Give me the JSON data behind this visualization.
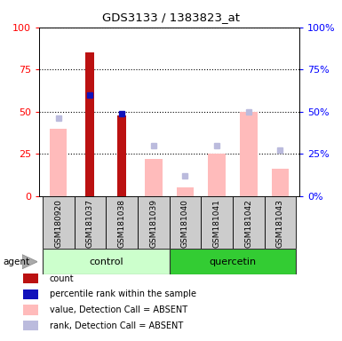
{
  "title": "GDS3133 / 1383823_at",
  "samples": [
    "GSM180920",
    "GSM181037",
    "GSM181038",
    "GSM181039",
    "GSM181040",
    "GSM181041",
    "GSM181042",
    "GSM181043"
  ],
  "count_values": [
    null,
    85,
    48,
    null,
    null,
    null,
    null,
    null
  ],
  "percentile_rank_values": [
    null,
    60,
    49,
    null,
    null,
    null,
    null,
    null
  ],
  "value_absent": [
    40,
    null,
    null,
    22,
    5,
    25,
    50,
    16
  ],
  "rank_absent": [
    46,
    null,
    null,
    30,
    12,
    30,
    50,
    27
  ],
  "ylim": [
    0,
    100
  ],
  "yticks": [
    0,
    25,
    50,
    75,
    100
  ],
  "count_color": "#bb1111",
  "percentile_color": "#1111bb",
  "value_absent_color": "#ffbbbb",
  "rank_absent_color": "#bbbbdd",
  "control_color_light": "#ccffcc",
  "control_color_dark": "#44dd44",
  "quercetin_color": "#33cc33",
  "sample_bg": "#cccccc",
  "bar_width": 0.55,
  "count_bar_width": 0.28
}
